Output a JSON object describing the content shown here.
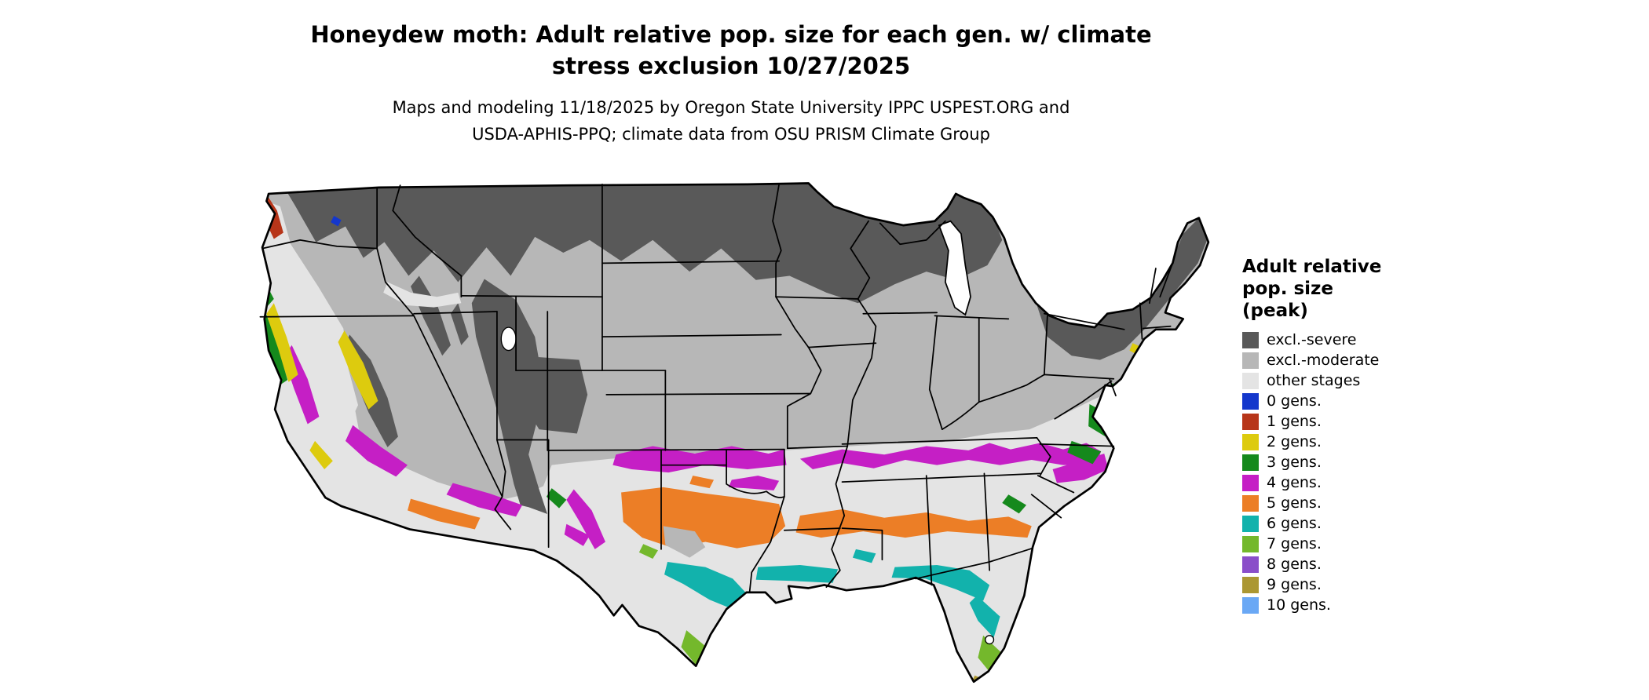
{
  "header": {
    "title_lines": [
      "Honeydew moth: Adult relative pop. size for each gen. w/ climate",
      "stress exclusion 10/27/2025"
    ],
    "subtitle_lines": [
      "Maps and modeling 11/18/2025 by Oregon State University IPPC USPEST.ORG and",
      "USDA-APHIS-PPQ; climate data from OSU PRISM Climate Group"
    ]
  },
  "map": {
    "region_label": "Contiguous United States choropleth",
    "background": "#ffffff",
    "border_color": "#000000"
  },
  "legend": {
    "title_lines": [
      "Adult relative",
      "pop. size",
      "(peak)"
    ],
    "items": [
      {
        "label": "excl.-severe",
        "color": "#595959"
      },
      {
        "label": "excl.-moderate",
        "color": "#b7b7b7"
      },
      {
        "label": "other stages",
        "color": "#e4e4e4"
      },
      {
        "label": "0 gens.",
        "color": "#1437cc"
      },
      {
        "label": "1 gens.",
        "color": "#b73519"
      },
      {
        "label": "2 gens.",
        "color": "#ddcb0e"
      },
      {
        "label": "3 gens.",
        "color": "#15891c"
      },
      {
        "label": "4 gens.",
        "color": "#c51fc5"
      },
      {
        "label": "5 gens.",
        "color": "#ec7e26"
      },
      {
        "label": "6 gens.",
        "color": "#12b2ac"
      },
      {
        "label": "7 gens.",
        "color": "#74b82c"
      },
      {
        "label": "8 gens.",
        "color": "#8a4ec9"
      },
      {
        "label": "9 gens.",
        "color": "#ab9733"
      },
      {
        "label": "10 gens.",
        "color": "#6aa8f5"
      }
    ]
  }
}
